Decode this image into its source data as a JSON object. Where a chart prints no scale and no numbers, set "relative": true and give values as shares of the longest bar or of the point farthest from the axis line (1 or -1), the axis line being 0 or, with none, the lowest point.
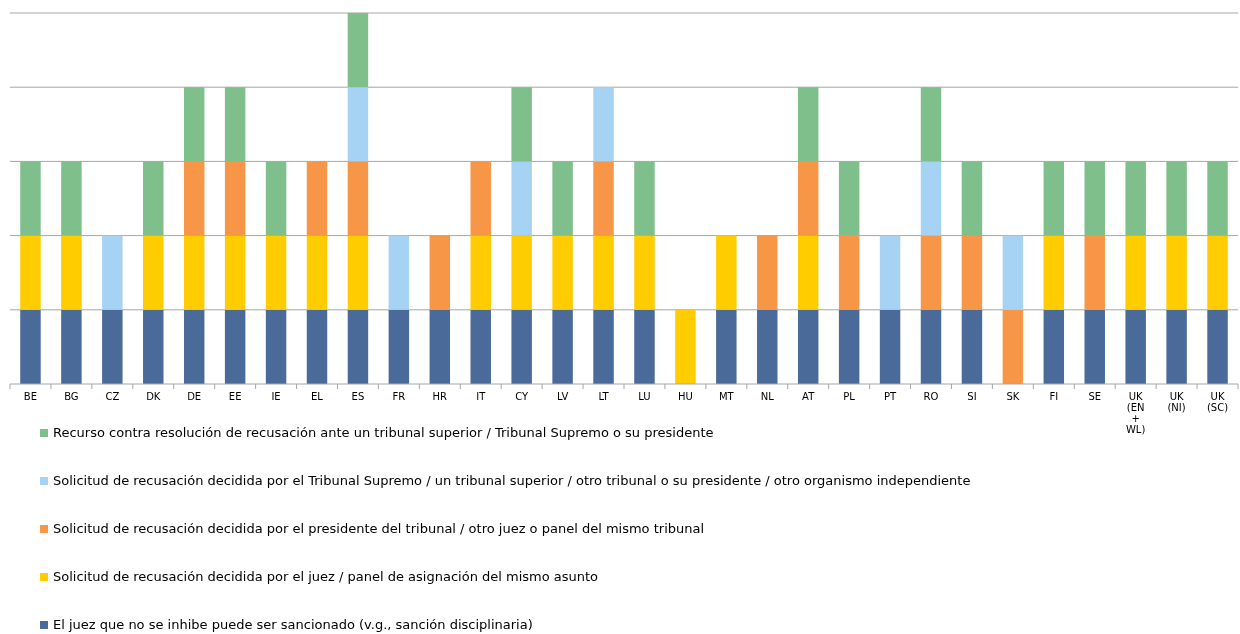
{
  "chart_data": {
    "type": "bar",
    "stacked": true,
    "relative": true,
    "grid": true,
    "legend": "bottom",
    "categories": [
      "BE",
      "BG",
      "CZ",
      "DK",
      "DE",
      "EE",
      "IE",
      "EL",
      "ES",
      "FR",
      "HR",
      "IT",
      "CY",
      "LV",
      "LT",
      "LU",
      "HU",
      "MT",
      "NL",
      "AT",
      "PL",
      "PT",
      "RO",
      "SI",
      "SK",
      "FI",
      "SE",
      "UK (EN + WL)",
      "UK (NI)",
      "UK (SC)"
    ],
    "series": [
      {
        "name": "El juez que no se inhibe puede ser sancionado (v.g., sanción disciplinaria)",
        "color": "#4a6a9a",
        "values": [
          0.2,
          0.2,
          0.2,
          0.2,
          0.2,
          0.2,
          0.2,
          0.2,
          0.2,
          0.2,
          0.2,
          0.2,
          0.2,
          0.2,
          0.2,
          0.2,
          0,
          0.2,
          0.2,
          0.2,
          0.2,
          0.2,
          0.2,
          0.2,
          0,
          0.2,
          0.2,
          0.2,
          0.2,
          0.2
        ]
      },
      {
        "name": "Solicitud de recusación decidida por el juez / panel de asignación del mismo asunto",
        "color": "#ffcc00",
        "values": [
          0.2,
          0.2,
          0,
          0.2,
          0.2,
          0.2,
          0.2,
          0.2,
          0.2,
          0,
          0,
          0.2,
          0.2,
          0.2,
          0.2,
          0.2,
          0.2,
          0.2,
          0,
          0.2,
          0,
          0,
          0,
          0,
          0,
          0.2,
          0,
          0.2,
          0.2,
          0.2
        ]
      },
      {
        "name": "Solicitud de recusación decidida por el presidente del tribunal / otro juez o panel del mismo tribunal",
        "color": "#f79646",
        "values": [
          0,
          0,
          0,
          0,
          0.2,
          0.2,
          0,
          0.2,
          0.2,
          0,
          0.2,
          0.2,
          0,
          0,
          0.2,
          0,
          0,
          0,
          0.2,
          0.2,
          0.2,
          0,
          0.2,
          0.2,
          0.2,
          0,
          0.2,
          0,
          0,
          0
        ]
      },
      {
        "name": "Solicitud de recusación decidida por el Tribunal Supremo / un tribunal superior / otro tribunal o su presidente / otro organismo independiente",
        "color": "#a6d2f4",
        "values": [
          0,
          0,
          0.2,
          0,
          0,
          0,
          0,
          0,
          0.2,
          0.2,
          0,
          0,
          0.2,
          0,
          0.2,
          0,
          0,
          0,
          0,
          0,
          0,
          0.2,
          0.2,
          0,
          0.2,
          0,
          0,
          0,
          0,
          0
        ]
      },
      {
        "name": "Recurso contra resolución de recusación ante un tribunal superior / Tribunal Supremo o su presidente",
        "color": "#7fbf8c",
        "values": [
          0.2,
          0.2,
          0,
          0.2,
          0.2,
          0.2,
          0.2,
          0,
          0.2,
          0,
          0,
          0,
          0.2,
          0.2,
          0,
          0.2,
          0,
          0,
          0,
          0.2,
          0.2,
          0,
          0.2,
          0.2,
          0,
          0.2,
          0.2,
          0.2,
          0.2,
          0.2
        ]
      }
    ]
  }
}
